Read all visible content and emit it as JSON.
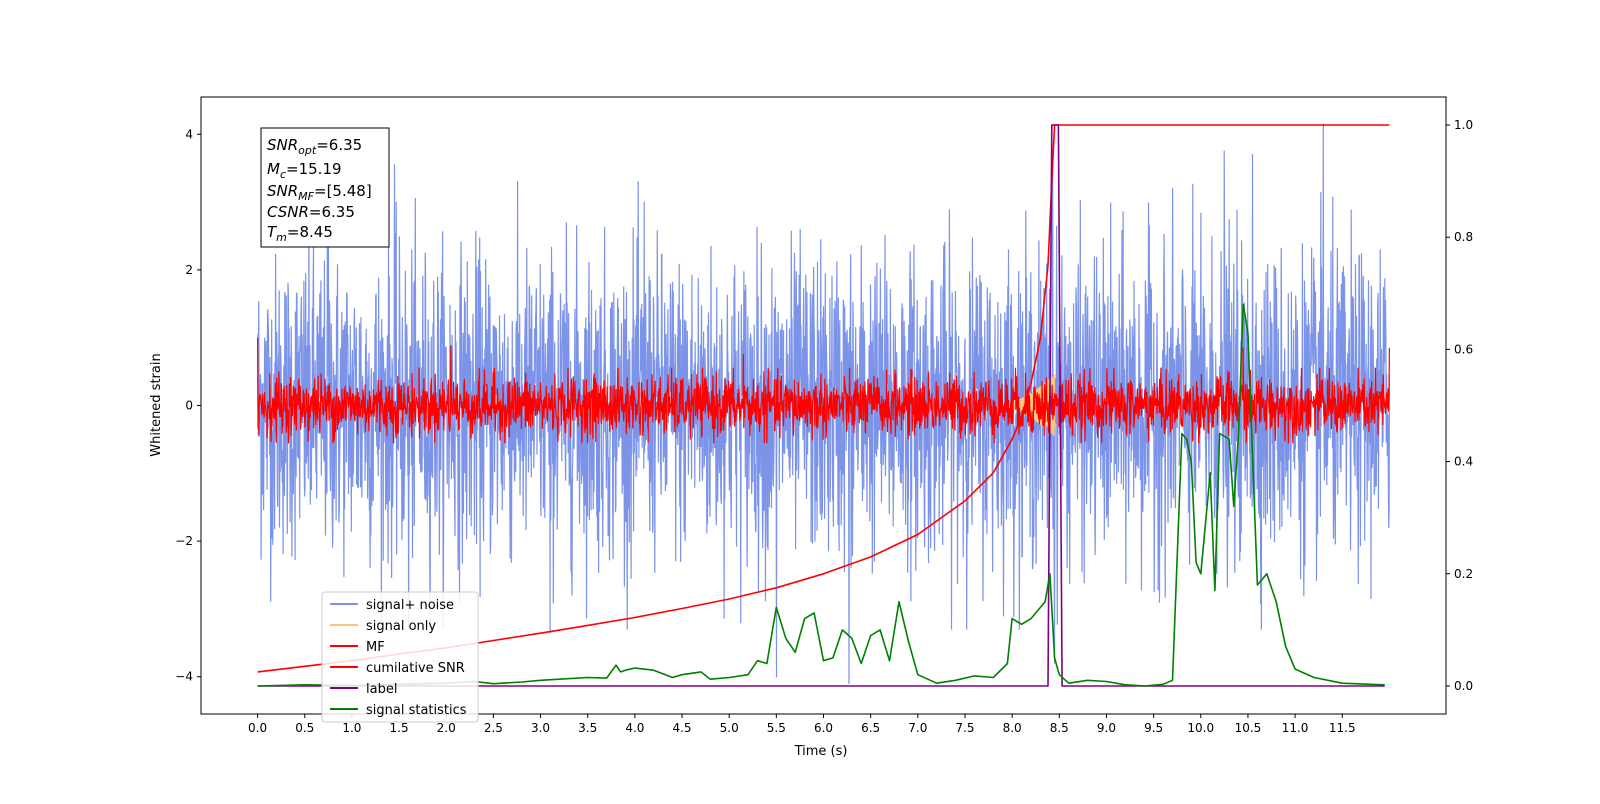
{
  "chart_data": {
    "type": "line",
    "xlabel": "Time (s)",
    "ylabel": "Whitened strain",
    "xlim": [
      -0.6,
      12.6
    ],
    "ylim": [
      -4.55,
      4.55
    ],
    "y2lim": [
      -0.05,
      1.05
    ],
    "x_ticks": [
      "0.0",
      "0.5",
      "1.0",
      "1.5",
      "2.0",
      "2.5",
      "3.0",
      "3.5",
      "4.0",
      "4.5",
      "5.0",
      "5.5",
      "6.0",
      "6.5",
      "7.0",
      "7.5",
      "8.0",
      "8.5",
      "9.0",
      "9.5",
      "10.0",
      "10.5",
      "11.0",
      "11.5"
    ],
    "y_ticks": [
      "−4",
      "−2",
      "0",
      "2",
      "4"
    ],
    "y2_ticks": [
      "0.0",
      "0.2",
      "0.4",
      "0.6",
      "0.8",
      "1.0"
    ],
    "grid": false,
    "legend_location": "lower-left",
    "annotation": [
      {
        "base": "SNR",
        "sub": "opt",
        "value": "=6.35"
      },
      {
        "base": "M",
        "sub": "c",
        "value": "=15.19"
      },
      {
        "base": "SNR",
        "sub": "MF",
        "value": "=[5.48]"
      },
      {
        "base": "CSNR",
        "sub": "",
        "value": "=6.35"
      },
      {
        "base": "T",
        "sub": "m",
        "value": "=8.45"
      }
    ],
    "series": [
      {
        "name": "signal+ noise",
        "color": "#7b93e8",
        "axis": "left",
        "kind": "noise",
        "x_range": [
          0.0,
          12.0
        ],
        "amplitude_range": [
          -3.4,
          4.15
        ],
        "typical_std": 1.1,
        "peak_spikes": [
          {
            "x": 0.75,
            "y": 3.4
          },
          {
            "x": 1.45,
            "y": 3.55
          },
          {
            "x": 1.6,
            "y": -3.3
          },
          {
            "x": 3.1,
            "y": -3.35
          },
          {
            "x": 4.1,
            "y": 3.0
          },
          {
            "x": 5.5,
            "y": -4.0
          },
          {
            "x": 6.27,
            "y": -4.1
          },
          {
            "x": 8.43,
            "y": 3.6
          },
          {
            "x": 8.45,
            "y": -3.8
          },
          {
            "x": 10.25,
            "y": 3.75
          },
          {
            "x": 10.55,
            "y": 3.7
          },
          {
            "x": 11.3,
            "y": 4.15
          }
        ]
      },
      {
        "name": "signal only",
        "color": "#f5c97a",
        "axis": "left",
        "kind": "chirp",
        "x_range": [
          7.9,
          8.45
        ],
        "peak_amplitude": 0.45
      },
      {
        "name": "MF",
        "color": "#ff0000",
        "axis": "left",
        "kind": "noise",
        "x_range": [
          0.0,
          12.0
        ],
        "typical_std": 0.22,
        "start_value": 1.0,
        "end_value": 0.85,
        "peak_spikes": [
          {
            "x": 0.0,
            "y": 1.0
          },
          {
            "x": 2.05,
            "y": 0.88
          },
          {
            "x": 5.15,
            "y": 0.75
          },
          {
            "x": 10.45,
            "y": 0.85
          },
          {
            "x": 12.0,
            "y": 0.85
          }
        ]
      },
      {
        "name": "cumilative SNR",
        "color": "#ff0000",
        "axis": "right",
        "x": [
          0.0,
          0.5,
          1.0,
          1.5,
          2.0,
          2.5,
          3.0,
          3.5,
          4.0,
          4.5,
          5.0,
          5.5,
          6.0,
          6.5,
          7.0,
          7.5,
          7.8,
          8.0,
          8.1,
          8.2,
          8.3,
          8.38,
          8.42,
          8.45,
          12.0
        ],
        "values": [
          0.025,
          0.035,
          0.045,
          0.057,
          0.068,
          0.081,
          0.094,
          0.108,
          0.122,
          0.138,
          0.155,
          0.175,
          0.2,
          0.23,
          0.27,
          0.33,
          0.38,
          0.44,
          0.48,
          0.54,
          0.62,
          0.75,
          0.9,
          1.0,
          1.0
        ]
      },
      {
        "name": "label",
        "color": "#800080",
        "axis": "right",
        "x": [
          0.0,
          8.38,
          8.42,
          8.49,
          8.53,
          11.95
        ],
        "values": [
          0.0,
          0.0,
          1.0,
          1.0,
          0.0,
          0.0
        ]
      },
      {
        "name": "signal statistics",
        "color": "#008000",
        "axis": "right",
        "x": [
          0.0,
          0.5,
          1.0,
          1.5,
          2.0,
          2.3,
          2.5,
          2.8,
          3.0,
          3.2,
          3.5,
          3.7,
          3.8,
          3.85,
          3.9,
          4.0,
          4.2,
          4.4,
          4.5,
          4.7,
          4.8,
          5.0,
          5.2,
          5.3,
          5.4,
          5.5,
          5.6,
          5.7,
          5.8,
          5.9,
          6.0,
          6.1,
          6.2,
          6.3,
          6.4,
          6.5,
          6.6,
          6.7,
          6.8,
          6.9,
          7.0,
          7.2,
          7.4,
          7.6,
          7.8,
          7.95,
          8.0,
          8.1,
          8.2,
          8.3,
          8.35,
          8.4,
          8.45,
          8.5,
          8.6,
          8.8,
          9.0,
          9.2,
          9.4,
          9.6,
          9.7,
          9.8,
          9.85,
          9.9,
          9.95,
          10.0,
          10.1,
          10.15,
          10.2,
          10.3,
          10.35,
          10.4,
          10.45,
          10.5,
          10.6,
          10.7,
          10.8,
          10.9,
          11.0,
          11.2,
          11.5,
          11.8,
          11.95
        ],
        "values": [
          0.0,
          0.002,
          0.001,
          0.003,
          0.005,
          0.008,
          0.004,
          0.007,
          0.01,
          0.012,
          0.015,
          0.014,
          0.037,
          0.025,
          0.028,
          0.032,
          0.028,
          0.015,
          0.02,
          0.025,
          0.012,
          0.015,
          0.02,
          0.045,
          0.04,
          0.14,
          0.085,
          0.06,
          0.12,
          0.13,
          0.045,
          0.05,
          0.1,
          0.085,
          0.04,
          0.09,
          0.1,
          0.045,
          0.15,
          0.08,
          0.02,
          0.005,
          0.01,
          0.018,
          0.015,
          0.04,
          0.12,
          0.11,
          0.12,
          0.14,
          0.15,
          0.2,
          0.05,
          0.02,
          0.005,
          0.01,
          0.008,
          0.002,
          0.0,
          0.003,
          0.01,
          0.45,
          0.44,
          0.4,
          0.22,
          0.2,
          0.38,
          0.17,
          0.45,
          0.44,
          0.32,
          0.45,
          0.68,
          0.63,
          0.18,
          0.2,
          0.15,
          0.07,
          0.03,
          0.015,
          0.005,
          0.003,
          0.002
        ]
      }
    ]
  }
}
